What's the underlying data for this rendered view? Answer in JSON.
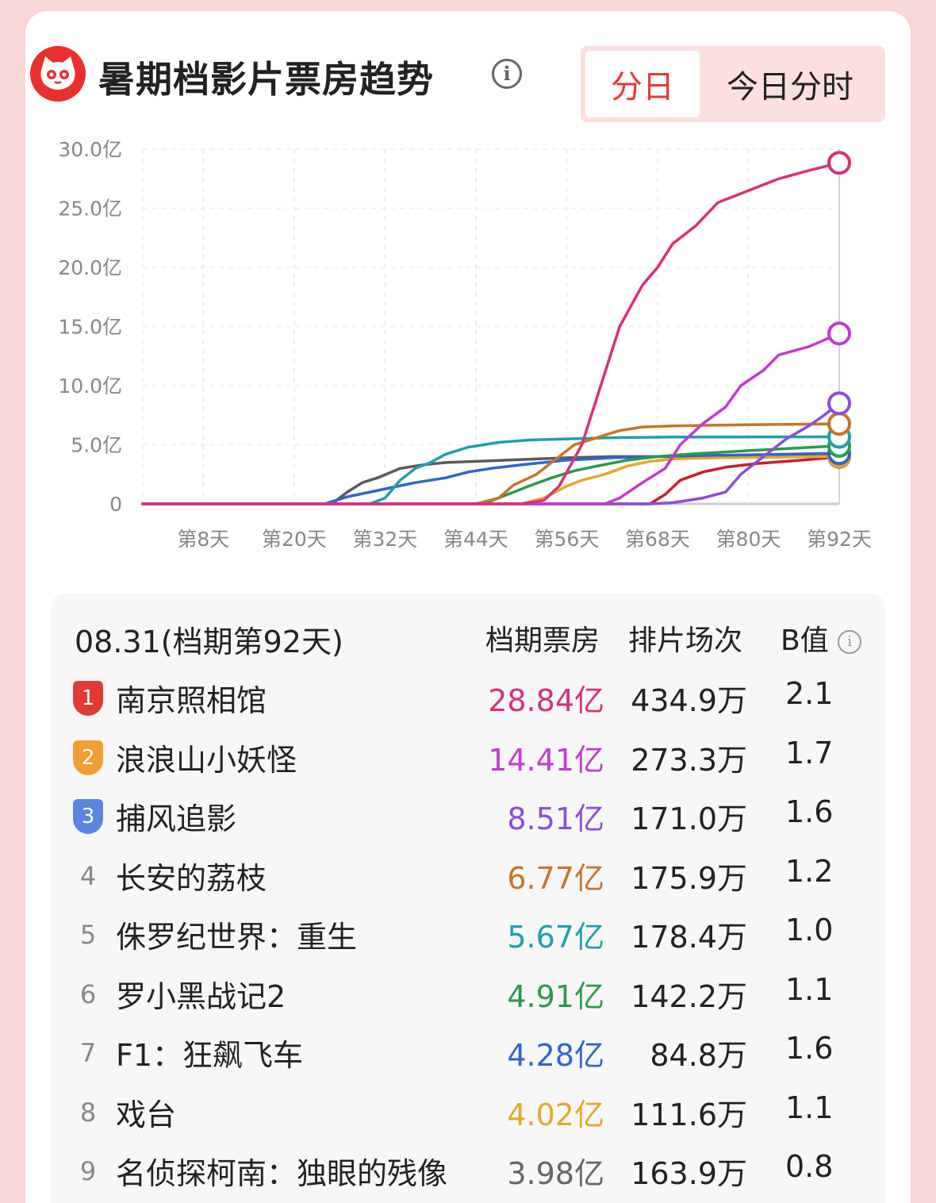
{
  "header": {
    "title": "暑期档影片票房趋势",
    "tabs": [
      {
        "label": "分日",
        "active": true
      },
      {
        "label": "今日分时",
        "active": false
      }
    ]
  },
  "chart_data": {
    "type": "line",
    "ylim": [
      0,
      30
    ],
    "yticks": [
      "0",
      "5.0亿",
      "10.0亿",
      "15.0亿",
      "20.0亿",
      "25.0亿",
      "30.0亿"
    ],
    "xlim": [
      0,
      92
    ],
    "xticks": [
      "第8天",
      "第20天",
      "第32天",
      "第44天",
      "第56天",
      "第68天",
      "第80天",
      "第92天"
    ],
    "xtick_days": [
      8,
      20,
      32,
      44,
      56,
      68,
      80,
      92
    ],
    "series": [
      {
        "name": "南京照相馆",
        "color": "#d8307a",
        "points": [
          [
            0,
            0
          ],
          [
            50,
            0
          ],
          [
            53,
            0.3
          ],
          [
            55,
            1.5
          ],
          [
            58,
            5
          ],
          [
            60,
            9
          ],
          [
            63,
            15
          ],
          [
            66,
            18.5
          ],
          [
            68,
            20
          ],
          [
            70,
            22
          ],
          [
            73,
            23.5
          ],
          [
            76,
            25.5
          ],
          [
            80,
            26.5
          ],
          [
            84,
            27.5
          ],
          [
            88,
            28.2
          ],
          [
            92,
            28.84
          ]
        ]
      },
      {
        "name": "浪浪山小妖怪",
        "color": "#c23ad2",
        "points": [
          [
            0,
            0
          ],
          [
            61,
            0
          ],
          [
            63,
            0.5
          ],
          [
            66,
            1.8
          ],
          [
            69,
            3
          ],
          [
            71,
            5
          ],
          [
            74,
            6.8
          ],
          [
            77,
            8.2
          ],
          [
            79,
            10
          ],
          [
            82,
            11.3
          ],
          [
            84,
            12.6
          ],
          [
            88,
            13.3
          ],
          [
            92,
            14.41
          ]
        ]
      },
      {
        "name": "捕风追影",
        "color": "#8f4cd8",
        "points": [
          [
            0,
            0
          ],
          [
            67,
            0
          ],
          [
            70,
            0.1
          ],
          [
            74,
            0.5
          ],
          [
            77,
            1
          ],
          [
            79,
            2.5
          ],
          [
            82,
            4
          ],
          [
            85,
            5.5
          ],
          [
            88,
            6.6
          ],
          [
            90,
            7.5
          ],
          [
            92,
            8.51
          ]
        ]
      },
      {
        "name": "长安的荔枝",
        "color": "#c8742a",
        "points": [
          [
            0,
            0
          ],
          [
            44,
            0
          ],
          [
            47,
            0.5
          ],
          [
            49,
            1.6
          ],
          [
            52,
            2.5
          ],
          [
            54,
            3.5
          ],
          [
            57,
            5
          ],
          [
            60,
            5.6
          ],
          [
            63,
            6.2
          ],
          [
            66,
            6.5
          ],
          [
            70,
            6.6
          ],
          [
            80,
            6.7
          ],
          [
            92,
            6.77
          ]
        ]
      },
      {
        "name": "侏罗纪世界：重生",
        "color": "#1f9fae",
        "points": [
          [
            0,
            0
          ],
          [
            30,
            0
          ],
          [
            32,
            0.5
          ],
          [
            34,
            2
          ],
          [
            36,
            3
          ],
          [
            38,
            3.5
          ],
          [
            40,
            4.2
          ],
          [
            43,
            4.8
          ],
          [
            47,
            5.2
          ],
          [
            51,
            5.4
          ],
          [
            56,
            5.5
          ],
          [
            62,
            5.6
          ],
          [
            70,
            5.65
          ],
          [
            92,
            5.67
          ]
        ]
      },
      {
        "name": "罗小黑战记2",
        "color": "#2a9a4a",
        "points": [
          [
            0,
            0
          ],
          [
            45,
            0
          ],
          [
            47,
            0.5
          ],
          [
            49,
            1
          ],
          [
            51,
            1.5
          ],
          [
            54,
            2.2
          ],
          [
            57,
            2.8
          ],
          [
            60,
            3.2
          ],
          [
            64,
            3.7
          ],
          [
            68,
            4
          ],
          [
            72,
            4.2
          ],
          [
            80,
            4.5
          ],
          [
            92,
            4.91
          ]
        ]
      },
      {
        "name": "F1：狂飙飞车",
        "color": "#2f66c9",
        "points": [
          [
            0,
            0
          ],
          [
            24,
            0
          ],
          [
            27,
            0.6
          ],
          [
            30,
            1
          ],
          [
            33,
            1.4
          ],
          [
            36,
            1.8
          ],
          [
            40,
            2.2
          ],
          [
            43,
            2.7
          ],
          [
            46,
            3
          ],
          [
            50,
            3.3
          ],
          [
            56,
            3.7
          ],
          [
            62,
            3.9
          ],
          [
            70,
            4.05
          ],
          [
            80,
            4.15
          ],
          [
            92,
            4.28
          ]
        ]
      },
      {
        "name": "戏台",
        "color": "#e8a72a",
        "points": [
          [
            0,
            0
          ],
          [
            50,
            0
          ],
          [
            53,
            0.5
          ],
          [
            56,
            1.5
          ],
          [
            58,
            2
          ],
          [
            61,
            2.5
          ],
          [
            64,
            3.2
          ],
          [
            67,
            3.6
          ],
          [
            70,
            3.8
          ],
          [
            76,
            3.9
          ],
          [
            84,
            3.95
          ],
          [
            92,
            4.02
          ]
        ]
      },
      {
        "name": "名侦探柯南：独眼的残像",
        "color": "#c81e2e",
        "points": [
          [
            0,
            0
          ],
          [
            67,
            0
          ],
          [
            69,
            0.8
          ],
          [
            71,
            2
          ],
          [
            74,
            2.7
          ],
          [
            77,
            3.1
          ],
          [
            81,
            3.4
          ],
          [
            85,
            3.6
          ],
          [
            88,
            3.75
          ],
          [
            92,
            3.98
          ]
        ]
      },
      {
        "name": "",
        "color": "#5a5a5a",
        "points": [
          [
            0,
            0
          ],
          [
            25,
            0
          ],
          [
            27,
            1
          ],
          [
            29,
            1.8
          ],
          [
            31,
            2.2
          ],
          [
            34,
            3
          ],
          [
            37,
            3.3
          ],
          [
            40,
            3.5
          ],
          [
            44,
            3.6
          ],
          [
            48,
            3.7
          ],
          [
            52,
            3.8
          ],
          [
            56,
            3.9
          ],
          [
            62,
            4
          ],
          [
            70,
            4
          ],
          [
            80,
            4.1
          ],
          [
            92,
            4.2
          ]
        ]
      }
    ]
  },
  "table": {
    "date": "08.31(档期第92天)",
    "headers": {
      "gross": "档期票房",
      "shows": "排片场次",
      "bval": "B值"
    },
    "rows": [
      {
        "rank": "1",
        "name": "南京照相馆",
        "gross": "28.84亿",
        "shows": "434.9万",
        "bval": "2.1",
        "color": "#d8307a",
        "badge": "#e23a36"
      },
      {
        "rank": "2",
        "name": "浪浪山小妖怪",
        "gross": "14.41亿",
        "shows": "273.3万",
        "bval": "1.7",
        "color": "#c23ad2",
        "badge": "#f0a030"
      },
      {
        "rank": "3",
        "name": "捕风追影",
        "gross": "8.51亿",
        "shows": "171.0万",
        "bval": "1.6",
        "color": "#8f4cd8",
        "badge": "#5a86e0"
      },
      {
        "rank": "4",
        "name": "长安的荔枝",
        "gross": "6.77亿",
        "shows": "175.9万",
        "bval": "1.2",
        "color": "#c8742a",
        "badge": ""
      },
      {
        "rank": "5",
        "name": "侏罗纪世界：重生",
        "gross": "5.67亿",
        "shows": "178.4万",
        "bval": "1.0",
        "color": "#1f9fae",
        "badge": ""
      },
      {
        "rank": "6",
        "name": "罗小黑战记2",
        "gross": "4.91亿",
        "shows": "142.2万",
        "bval": "1.1",
        "color": "#2a9a4a",
        "badge": ""
      },
      {
        "rank": "7",
        "name": "F1：狂飙飞车",
        "gross": "4.28亿",
        "shows": "84.8万",
        "bval": "1.6",
        "color": "#2f66c9",
        "badge": ""
      },
      {
        "rank": "8",
        "name": "戏台",
        "gross": "4.02亿",
        "shows": "111.6万",
        "bval": "1.1",
        "color": "#e8a72a",
        "badge": ""
      },
      {
        "rank": "9",
        "name": "名侦探柯南：独眼的残像",
        "gross": "3.98亿",
        "shows": "163.9万",
        "bval": "0.8",
        "color": "#666666",
        "badge": ""
      }
    ]
  }
}
